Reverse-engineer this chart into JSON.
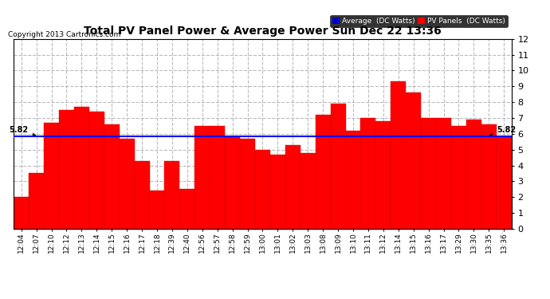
{
  "title": "Total PV Panel Power & Average Power Sun Dec 22 13:36",
  "copyright": "Copyright 2013 Cartronics.com",
  "bar_color": "#FF0000",
  "avg_line_color": "#0000FF",
  "avg_value": 5.82,
  "avg_label": "5.82",
  "background_color": "#FFFFFF",
  "plot_bg_color": "#FFFFFF",
  "grid_color": "#AAAAAA",
  "ylim": [
    0.0,
    12.0
  ],
  "yticks": [
    0.0,
    1.0,
    2.0,
    3.0,
    4.0,
    5.0,
    6.0,
    7.0,
    8.0,
    9.0,
    10.0,
    11.0,
    12.0
  ],
  "legend_avg_color": "#0000CC",
  "legend_pv_color": "#FF0000",
  "legend_avg_text": "Average  (DC Watts)",
  "legend_pv_text": "PV Panels  (DC Watts)",
  "categories": [
    "12:04",
    "12:07",
    "12:10",
    "12:12",
    "12:13",
    "12:14",
    "12:15",
    "12:16",
    "12:17",
    "12:18",
    "12:39",
    "12:40",
    "12:56",
    "12:57",
    "12:58",
    "12:59",
    "13:00",
    "13:01",
    "13:02",
    "13:03",
    "13:08",
    "13:09",
    "13:10",
    "13:11",
    "13:12",
    "13:14",
    "13:15",
    "13:16",
    "13:17",
    "13:29",
    "13:30",
    "13:35",
    "13:36"
  ],
  "values": [
    2.0,
    3.5,
    6.7,
    7.5,
    7.7,
    7.4,
    6.6,
    5.7,
    4.3,
    2.4,
    4.3,
    2.5,
    6.5,
    6.5,
    5.8,
    5.7,
    5.0,
    4.7,
    5.3,
    4.8,
    7.2,
    7.9,
    6.2,
    7.0,
    6.8,
    9.3,
    8.6,
    7.0,
    7.0,
    6.5,
    6.9,
    6.6,
    5.82
  ]
}
